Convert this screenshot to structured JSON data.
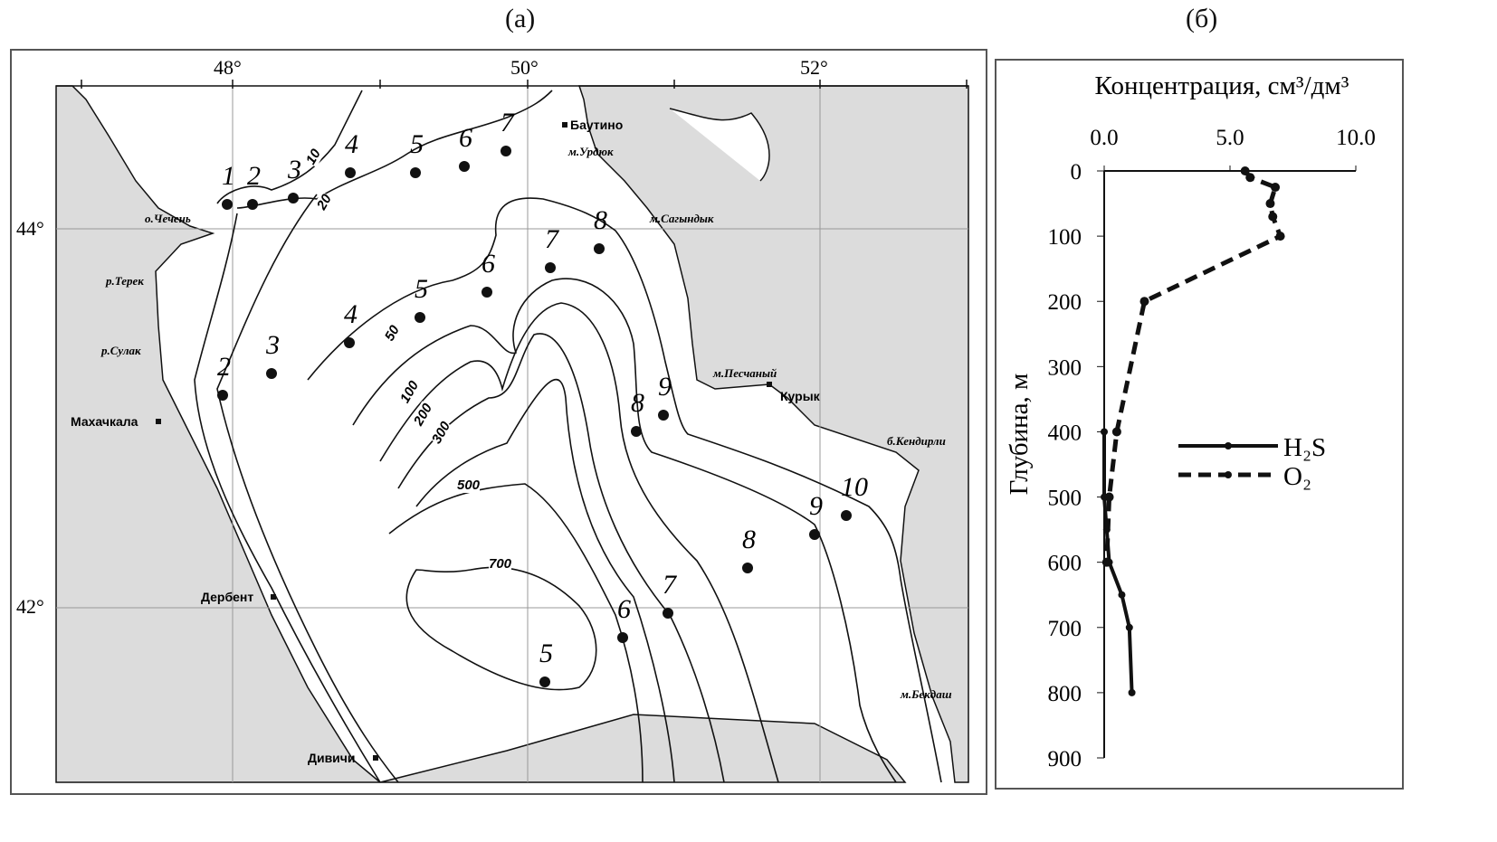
{
  "panel_a": {
    "label": "(а)",
    "lon_labels": [
      "48°",
      "50°",
      "52°"
    ],
    "lat_labels": [
      "44°",
      "42°"
    ],
    "places": [
      "Баутино",
      "м.Урдюк",
      "м.Сагындык",
      "о.Чечень",
      "р.Терек",
      "р.Сулак",
      "Махачкала",
      "м.Песчаный",
      "Курык",
      "б.Кендирли",
      "Дербент",
      "Дивичи",
      "м.Бекдаш"
    ],
    "contour_labels": [
      "10",
      "20",
      "50",
      "100",
      "200",
      "300",
      "500",
      "700"
    ],
    "stations": [
      "1",
      "2",
      "3",
      "4",
      "5",
      "6",
      "7",
      "2",
      "3",
      "4",
      "5",
      "6",
      "7",
      "8",
      "8",
      "9",
      "10",
      "9",
      "8",
      "7",
      "6",
      "5"
    ],
    "colors": {
      "land": "#dcdcdc",
      "sea": "#ffffff",
      "lines": "#111111"
    }
  },
  "panel_b": {
    "label": "(б)"
  },
  "chart_data": {
    "type": "line",
    "xlabel": "Концентрация, см³/дм³",
    "ylabel": "Глубина, м",
    "xlim": [
      0,
      10
    ],
    "ylim": [
      900,
      0
    ],
    "x_axis_position": "top",
    "xticks": [
      "0.0",
      "5.0",
      "10.0"
    ],
    "yticks": [
      "0",
      "100",
      "200",
      "300",
      "400",
      "500",
      "600",
      "700",
      "800",
      "900"
    ],
    "legend_placement": "right",
    "grid": false,
    "series": [
      {
        "name": "H₂S",
        "style": "solid",
        "points": [
          [
            0.0,
            400
          ],
          [
            0.0,
            500
          ],
          [
            0.1,
            550
          ],
          [
            0.2,
            600
          ],
          [
            0.7,
            650
          ],
          [
            1.0,
            700
          ],
          [
            1.1,
            800
          ]
        ]
      },
      {
        "name": "O₂",
        "style": "dashed",
        "points": [
          [
            5.6,
            0
          ],
          [
            5.8,
            10
          ],
          [
            6.8,
            25
          ],
          [
            6.6,
            50
          ],
          [
            6.7,
            70
          ],
          [
            7.0,
            100
          ],
          [
            1.6,
            200
          ],
          [
            0.5,
            400
          ],
          [
            0.2,
            500
          ],
          [
            0.1,
            600
          ]
        ]
      }
    ]
  }
}
